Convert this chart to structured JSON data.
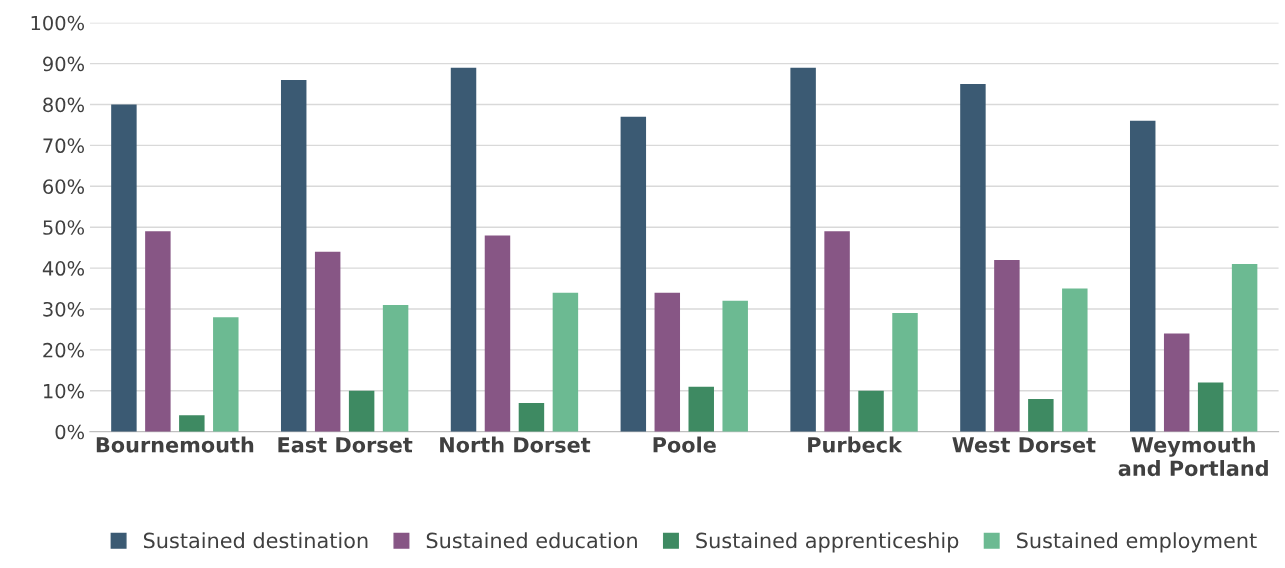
{
  "chart_data": {
    "type": "bar",
    "categories": [
      "Bournemouth",
      "East Dorset",
      "North Dorset",
      "Poole",
      "Purbeck",
      "West Dorset",
      "Weymouth\nand Portland"
    ],
    "series": [
      {
        "name": "Sustained destination",
        "color": "#3b5a73",
        "values": [
          80,
          86,
          89,
          77,
          89,
          85,
          76
        ]
      },
      {
        "name": "Sustained education",
        "color": "#875685",
        "values": [
          49,
          44,
          48,
          34,
          49,
          42,
          24
        ]
      },
      {
        "name": "Sustained apprenticeship",
        "color": "#3e8a62",
        "values": [
          4,
          10,
          7,
          11,
          10,
          8,
          12
        ]
      },
      {
        "name": "Sustained employment",
        "color": "#6cba92",
        "values": [
          28,
          31,
          34,
          32,
          29,
          35,
          41
        ]
      }
    ],
    "ylim": [
      0,
      100
    ],
    "yticks": [
      {
        "value": 0,
        "label": "0%"
      },
      {
        "value": 10,
        "label": "10%"
      },
      {
        "value": 20,
        "label": "20%"
      },
      {
        "value": 30,
        "label": "30%"
      },
      {
        "value": 40,
        "label": "40%"
      },
      {
        "value": 50,
        "label": "50%"
      },
      {
        "value": 60,
        "label": "60%"
      },
      {
        "value": 70,
        "label": "70%"
      },
      {
        "value": 80,
        "label": "80%"
      },
      {
        "value": 90,
        "label": "90%"
      },
      {
        "value": 100,
        "label": "100%"
      }
    ],
    "grid": "y",
    "legend": "bottom"
  }
}
